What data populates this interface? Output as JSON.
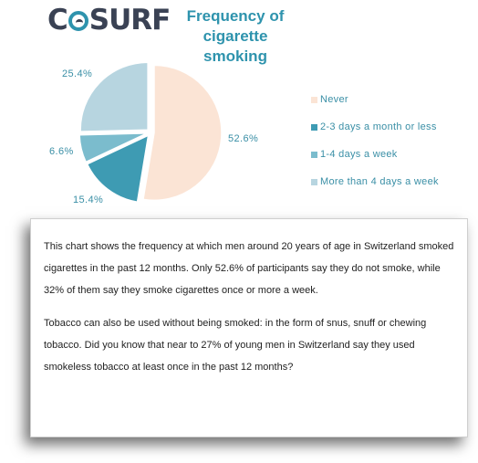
{
  "logo": {
    "left": "C",
    "mid": "S",
    "right": "URF"
  },
  "header": {
    "title": "Frequency of cigarette smoking"
  },
  "chart_data": {
    "type": "pie",
    "title": "Frequency of cigarette smoking",
    "categories": [
      "Never",
      "2-3 days a month or less",
      "1-4 days a week",
      "More than 4 days a week"
    ],
    "values": [
      52.6,
      15.4,
      6.6,
      25.4
    ],
    "value_labels": [
      "52.6%",
      "15.4%",
      "6.6%",
      "25.4%"
    ],
    "colors": [
      "#fbe4d5",
      "#3e9bb3",
      "#7bbccd",
      "#b7d5e0"
    ],
    "legend": "right"
  },
  "card": {
    "paragraph1": "This chart shows the frequency at which men around 20 years of age in Switzerland smoked cigarettes in the past 12 months.  Only 52.6% of participants say they do not smoke, while 32% of them say they smoke cigarettes once or more a week.",
    "paragraph2": "Tobacco can also be used without being smoked: in the form of snus, snuff or chewing tobacco. Did you know that near to 27% of young men in Switzerland say they used smokeless tobacco at least once in the past 12 months?"
  }
}
